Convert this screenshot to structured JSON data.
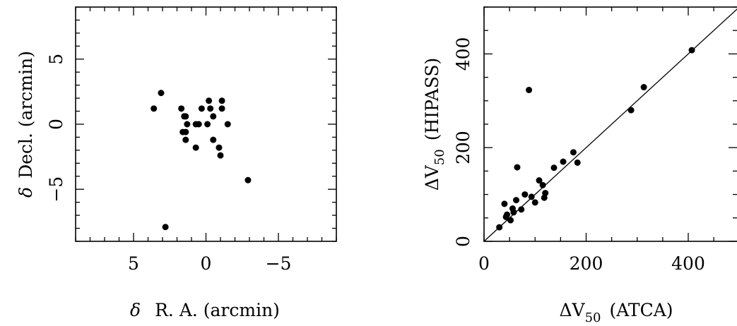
{
  "chart_data": [
    {
      "type": "scatter",
      "xlabel_symbol": "δ",
      "xlabel_text": "R. A. (arcmin)",
      "ylabel_symbol": "δ",
      "ylabel_text": "Decl. (arcmin)",
      "xlim": [
        9,
        -9
      ],
      "ylim": [
        -9,
        9
      ],
      "x_ticks": [
        {
          "value": 5,
          "label": "5"
        },
        {
          "value": 0,
          "label": "0"
        },
        {
          "value": -5,
          "label": "−5"
        }
      ],
      "y_ticks": [
        {
          "value": 5,
          "label": "5"
        },
        {
          "value": 0,
          "label": "0"
        },
        {
          "value": -5,
          "label": "−5"
        }
      ],
      "points": [
        {
          "x": 3.6,
          "y": 1.2
        },
        {
          "x": 3.1,
          "y": 2.4
        },
        {
          "x": 2.8,
          "y": -7.9
        },
        {
          "x": 1.7,
          "y": 1.2
        },
        {
          "x": 1.5,
          "y": 0.6
        },
        {
          "x": 1.4,
          "y": 0.6
        },
        {
          "x": 1.3,
          "y": 0.0
        },
        {
          "x": 1.6,
          "y": -0.6
        },
        {
          "x": 1.4,
          "y": -0.6
        },
        {
          "x": 1.4,
          "y": -1.2
        },
        {
          "x": 0.7,
          "y": 0.0
        },
        {
          "x": 0.5,
          "y": 0.0
        },
        {
          "x": 0.7,
          "y": -1.8
        },
        {
          "x": 0.3,
          "y": 1.2
        },
        {
          "x": -0.3,
          "y": 1.2
        },
        {
          "x": -0.2,
          "y": 1.8
        },
        {
          "x": -0.1,
          "y": 0.0
        },
        {
          "x": -0.5,
          "y": 0.6
        },
        {
          "x": -0.5,
          "y": -1.2
        },
        {
          "x": -0.9,
          "y": -1.8
        },
        {
          "x": -1.0,
          "y": -2.4
        },
        {
          "x": -1.1,
          "y": 1.2
        },
        {
          "x": -1.1,
          "y": 1.8
        },
        {
          "x": -1.5,
          "y": 0.0
        },
        {
          "x": -2.9,
          "y": -4.3
        }
      ]
    },
    {
      "type": "scatter",
      "xlabel_symbol": "ΔV",
      "xlabel_sub": "50",
      "xlabel_text": "(ATCA)",
      "ylabel_symbol": "ΔV",
      "ylabel_sub": "50",
      "ylabel_text": "(HIPASS)",
      "xlim": [
        0,
        500
      ],
      "ylim": [
        0,
        500
      ],
      "reference_line": "y = x",
      "x_ticks": [
        {
          "value": 0,
          "label": "0"
        },
        {
          "value": 200,
          "label": "200"
        },
        {
          "value": 400,
          "label": "400"
        }
      ],
      "y_ticks": [
        {
          "value": 0,
          "label": "0"
        },
        {
          "value": 200,
          "label": "200"
        },
        {
          "value": 400,
          "label": "400"
        }
      ],
      "points": [
        {
          "x": 30,
          "y": 30
        },
        {
          "x": 40,
          "y": 80
        },
        {
          "x": 43,
          "y": 52
        },
        {
          "x": 45,
          "y": 57
        },
        {
          "x": 52,
          "y": 45
        },
        {
          "x": 56,
          "y": 70
        },
        {
          "x": 58,
          "y": 62
        },
        {
          "x": 63,
          "y": 88
        },
        {
          "x": 65,
          "y": 158
        },
        {
          "x": 73,
          "y": 68
        },
        {
          "x": 80,
          "y": 100
        },
        {
          "x": 88,
          "y": 323
        },
        {
          "x": 93,
          "y": 95
        },
        {
          "x": 100,
          "y": 83
        },
        {
          "x": 108,
          "y": 130
        },
        {
          "x": 115,
          "y": 120
        },
        {
          "x": 118,
          "y": 93
        },
        {
          "x": 120,
          "y": 103
        },
        {
          "x": 137,
          "y": 157
        },
        {
          "x": 155,
          "y": 170
        },
        {
          "x": 175,
          "y": 190
        },
        {
          "x": 183,
          "y": 168
        },
        {
          "x": 288,
          "y": 280
        },
        {
          "x": 313,
          "y": 329
        },
        {
          "x": 407,
          "y": 408
        }
      ]
    }
  ]
}
